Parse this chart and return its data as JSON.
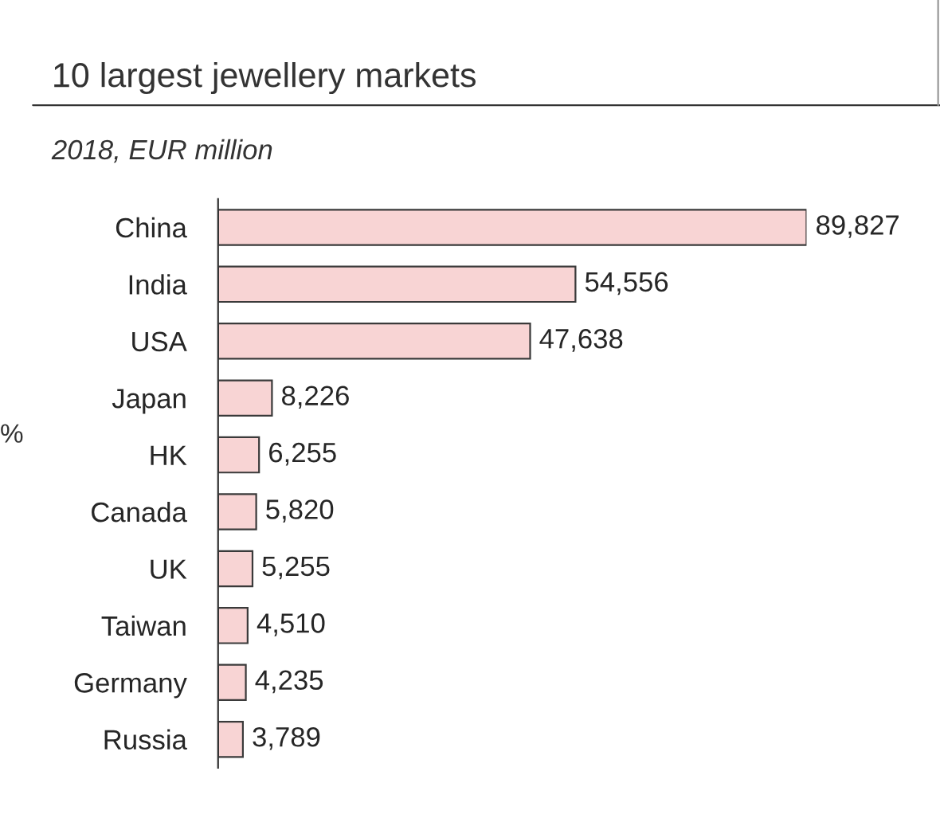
{
  "chart_data": {
    "type": "bar",
    "orientation": "horizontal",
    "title": "10 largest jewellery markets",
    "subtitle": "2018, EUR million",
    "categories": [
      "China",
      "India",
      "USA",
      "Japan",
      "HK",
      "Canada",
      "UK",
      "Taiwan",
      "Germany",
      "Russia"
    ],
    "values": [
      89827,
      54556,
      47638,
      8226,
      6255,
      5820,
      5255,
      4510,
      4235,
      3789
    ],
    "value_labels": [
      "89,827",
      "54,556",
      "47,638",
      "8,226",
      "6,255",
      "5,820",
      "5,255",
      "4,510",
      "4,235",
      "3,789"
    ],
    "color": "#f8d4d4",
    "tick_labels": "y",
    "grid": false,
    "legend": false,
    "annotations": [
      "%"
    ]
  }
}
